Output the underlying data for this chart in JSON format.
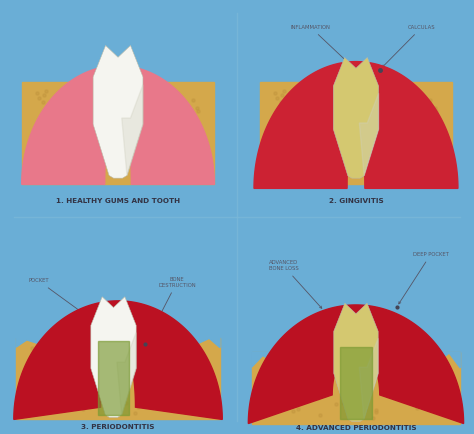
{
  "bg_color": "#6aaed6",
  "divider_color": "#7ab8d8",
  "gum_healthy_color": "#e8788a",
  "gum_inflamed_color": "#cc2233",
  "gum_severe_color": "#bb1122",
  "bone_color": "#d4a84b",
  "bone_dark": "#c49840",
  "tooth_white": "#f5f5f0",
  "tooth_shadow": "#d0d0c0",
  "tooth_yellow": "#d4c870",
  "tooth_green": "#7a9a33",
  "text_color": "#333344",
  "label_color": "#555566",
  "title1": "1. HEALTHY GUMS AND TOOTH",
  "title2": "2. GINGIVITIS",
  "title3": "3. PERIODONTITIS",
  "title4": "4. ADVANCED PERIODONTITIS",
  "annot2a": "INFLAMMATION",
  "annot2b": "CALCULAS",
  "annot3a": "POCKET",
  "annot3b": "BONE\nDESTRUCTION",
  "annot4a": "ADVANCED\nBONE LOSS",
  "annot4b": "DEEP POCKET"
}
